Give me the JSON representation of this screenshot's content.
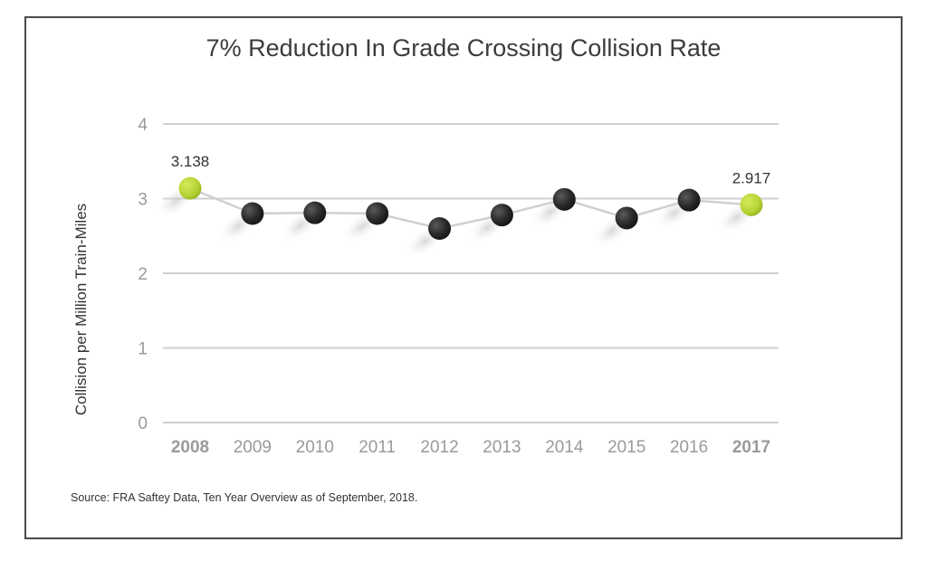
{
  "chart_data": {
    "type": "line",
    "title": "7% Reduction In Grade Crossing Collision Rate",
    "ylabel": "Collision per Million Train-Miles",
    "xlabel": "",
    "ylim": [
      0,
      4
    ],
    "yticks": [
      "0",
      "1",
      "2",
      "3",
      "4"
    ],
    "categories": [
      "2008",
      "2009",
      "2010",
      "2011",
      "2012",
      "2013",
      "2014",
      "2015",
      "2016",
      "2017"
    ],
    "highlight_categories": [
      "2008",
      "2017"
    ],
    "values": [
      3.138,
      2.8,
      2.81,
      2.8,
      2.6,
      2.78,
      2.99,
      2.74,
      2.98,
      2.917
    ],
    "data_labels": [
      {
        "category": "2008",
        "text": "3.138"
      },
      {
        "category": "2017",
        "text": "2.917"
      }
    ],
    "grid": true,
    "colors": {
      "highlight_marker": "#b5d334",
      "marker": "#2b2b2b",
      "line": "#d0d0d0",
      "grid": "#cfcfcf"
    }
  },
  "source": "Source: FRA Saftey Data, Ten Year Overview as of September, 2018."
}
